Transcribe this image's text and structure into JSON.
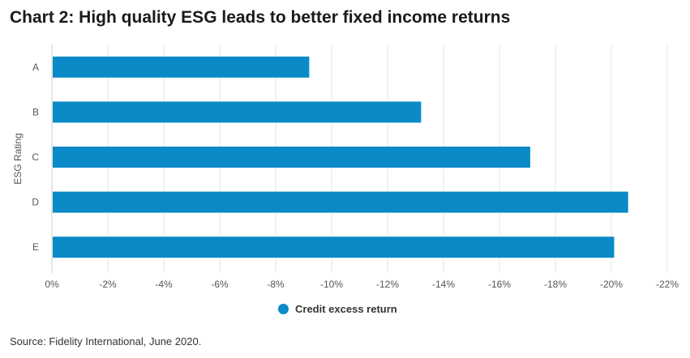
{
  "chart_data": {
    "type": "bar",
    "orientation": "horizontal",
    "title": "Chart 2: High quality ESG leads to better fixed income returns",
    "ylabel": "ESG Rating",
    "xlabel": "",
    "categories": [
      "A",
      "B",
      "C",
      "D",
      "E"
    ],
    "series": [
      {
        "name": "Credit excess return",
        "values": [
          -9.2,
          -13.2,
          -17.1,
          -20.6,
          -20.1
        ],
        "color": "#0a8ac7"
      }
    ],
    "x_ticks": [
      "0%",
      "-2%",
      "-4%",
      "-6%",
      "-8%",
      "-10%",
      "-12%",
      "-14%",
      "-16%",
      "-18%",
      "-20%",
      "-22%"
    ],
    "xlim": [
      0,
      -22
    ],
    "grid": "vertical",
    "legend_position": "bottom"
  },
  "source": "Source: Fidelity International, June 2020."
}
